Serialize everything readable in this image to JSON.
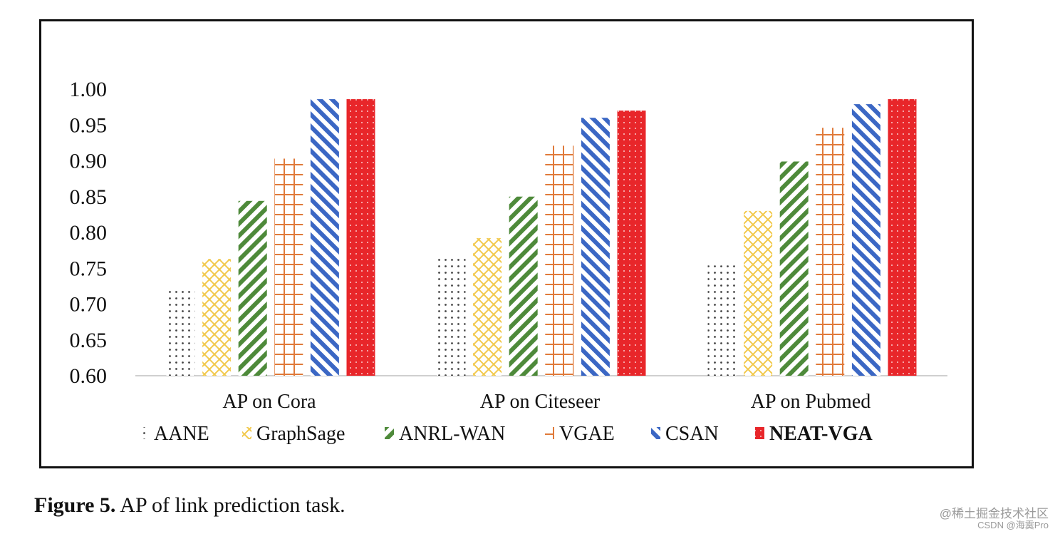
{
  "chart_data": {
    "type": "bar",
    "title": "",
    "xlabel": "",
    "ylabel": "",
    "ylim": [
      0.6,
      1.0
    ],
    "yticks": [
      "0.60",
      "0.65",
      "0.70",
      "0.75",
      "0.80",
      "0.85",
      "0.90",
      "0.95",
      "1.00"
    ],
    "categories": [
      "AP on Cora",
      "AP on Citeseer",
      "AP on Pubmed"
    ],
    "series": [
      {
        "name": "AANE",
        "values": [
          0.721,
          0.765,
          0.754
        ],
        "color": "#555555",
        "pattern": "dots",
        "bold": false
      },
      {
        "name": "GraphSage",
        "values": [
          0.763,
          0.792,
          0.83
        ],
        "color": "#f2c94c",
        "pattern": "cross",
        "bold": false
      },
      {
        "name": "ANRL-WAN",
        "values": [
          0.844,
          0.85,
          0.899
        ],
        "color": "#4e8a3a",
        "pattern": "diagf",
        "bold": false
      },
      {
        "name": "VGAE",
        "values": [
          0.903,
          0.921,
          0.946
        ],
        "color": "#e07a3a",
        "pattern": "grid",
        "bold": false
      },
      {
        "name": "CSAN",
        "values": [
          0.986,
          0.96,
          0.979
        ],
        "color": "#3b67c4",
        "pattern": "diagb",
        "bold": false
      },
      {
        "name": "NEAT-VGA",
        "values": [
          0.986,
          0.97,
          0.986
        ],
        "color": "#e8262a",
        "pattern": "reddots",
        "bold": true
      }
    ],
    "legend_position": "bottom"
  },
  "caption": {
    "label": "Figure 5.",
    "text": "AP of link prediction task."
  },
  "watermark": {
    "line1": "@稀土掘金技术社区",
    "line2": "CSDN @海霙Pro"
  }
}
